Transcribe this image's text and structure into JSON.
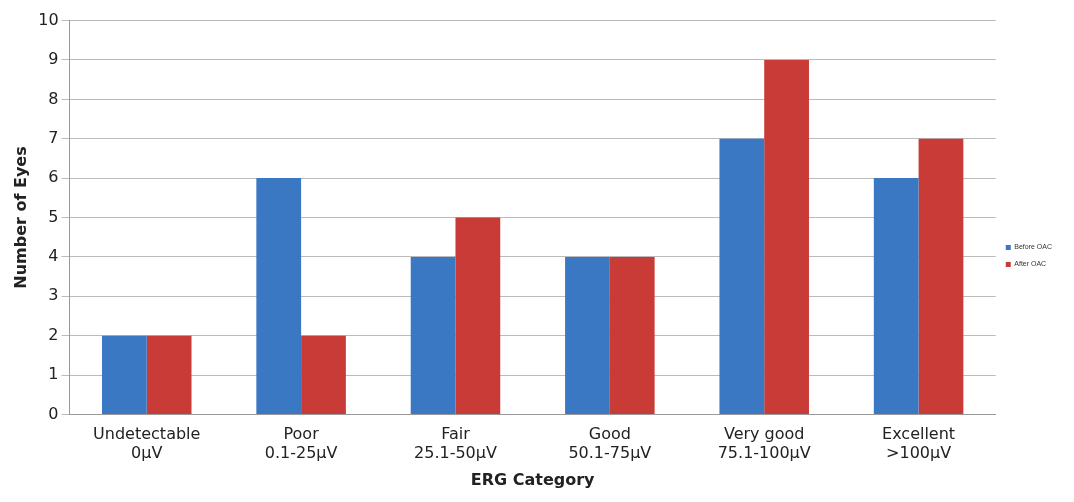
{
  "chart_data": {
    "type": "bar",
    "xlabel": "ERG Category",
    "ylabel": "Number of Eyes",
    "categories": [
      "Undetectable\n0μV",
      "Poor\n0.1-25μV",
      "Fair\n25.1-50μV",
      "Good\n50.1-75μV",
      "Very good\n75.1-100μV",
      "Excellent\n>100μV"
    ],
    "series": [
      {
        "name": "Before OAC",
        "color": "#3a78c4",
        "values": [
          2,
          6,
          4,
          4,
          7,
          6
        ]
      },
      {
        "name": "After OAC",
        "color": "#c93b36",
        "values": [
          2,
          2,
          5,
          4,
          9,
          7
        ]
      }
    ],
    "ylim": [
      0,
      10
    ],
    "yticks": [
      0,
      1,
      2,
      3,
      4,
      5,
      6,
      7,
      8,
      9,
      10
    ],
    "grid": "y",
    "legend": "right"
  }
}
